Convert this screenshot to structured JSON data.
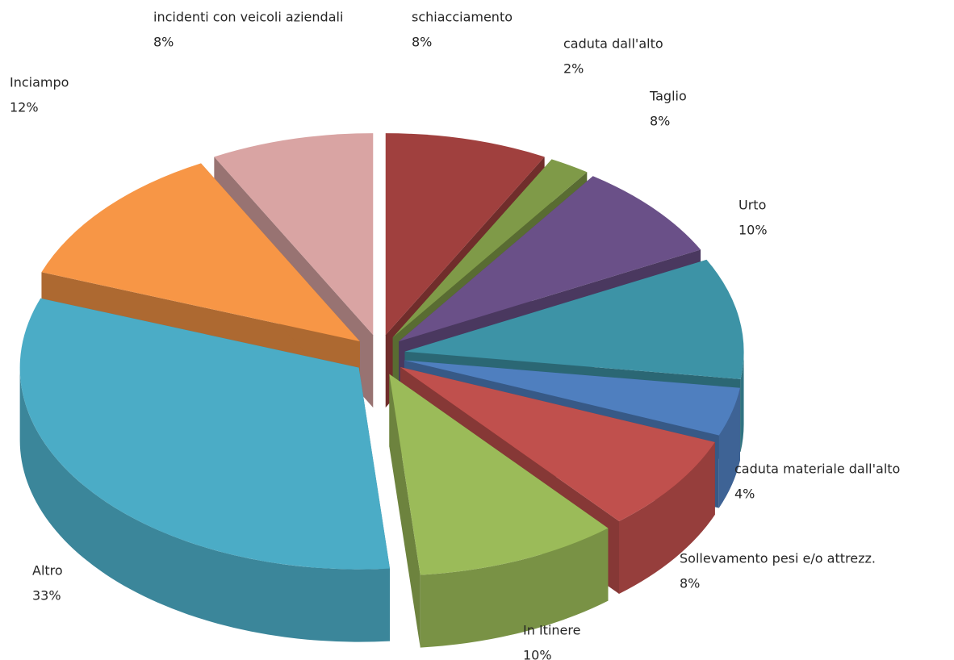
{
  "chart_data": {
    "type": "pie3d",
    "categories": [
      "schiacciamento",
      "caduta dall'alto",
      "Taglio",
      "Urto",
      "caduta materiale dall'alto",
      "Sollevamento pesi e/o attrezz.",
      "In Itinere",
      "Altro",
      "Inciampo",
      "incidenti con veicoli aziendali"
    ],
    "values": [
      8,
      2,
      8,
      10,
      4,
      8,
      10,
      33,
      12,
      8
    ],
    "value_labels": [
      "8%",
      "2%",
      "8%",
      "10%",
      "4%",
      "8%",
      "10%",
      "33%",
      "12%",
      "8%"
    ],
    "colors": [
      "#a0403e",
      "#7f9a48",
      "#6a5088",
      "#3d93a6",
      "#4f7fbf",
      "#c0504d",
      "#9bbb59",
      "#4bacc6",
      "#f79646",
      "#d9a4a3"
    ]
  }
}
